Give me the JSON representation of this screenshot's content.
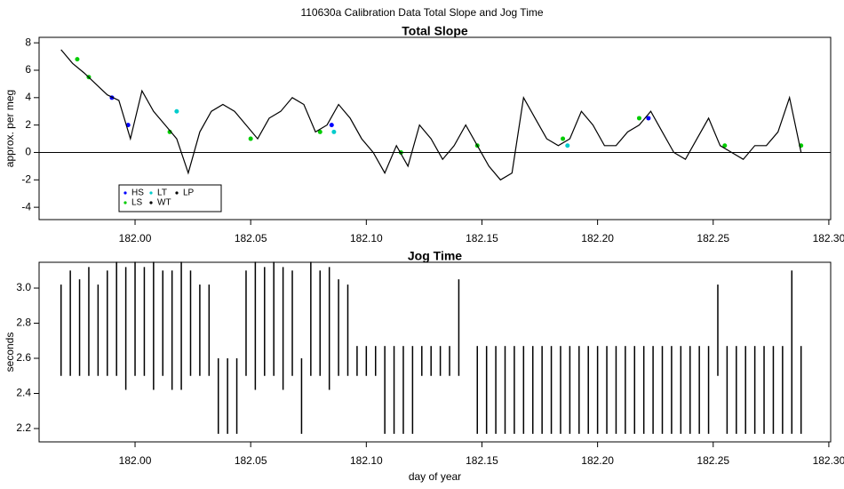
{
  "title": "110630a   Calibration Data Total Slope and Jog Time",
  "chart_data": [
    {
      "type": "line",
      "title": "Total Slope",
      "y_label": "approx. per meg",
      "xlim": [
        181.9585,
        182.3008
      ],
      "ylim": [
        -4.9,
        8.4
      ],
      "xticks": [
        {
          "value": 182,
          "label": "182.00"
        },
        {
          "value": 182.05,
          "label": "182.05"
        },
        {
          "value": 182.1,
          "label": "182.10"
        },
        {
          "value": 182.15,
          "label": "182.15"
        },
        {
          "value": 182.2,
          "label": "182.20"
        },
        {
          "value": 182.25,
          "label": "182.25"
        },
        {
          "value": 182.3,
          "label": "182.30"
        }
      ],
      "yticks": [
        -4,
        -2,
        0,
        2,
        4,
        6,
        8
      ],
      "hline": 0,
      "series": [
        {
          "name": "HS",
          "color": "#0000ff",
          "style": "points",
          "x": [
            181.99,
            181.997,
            182.085,
            182.222
          ],
          "values": [
            4.0,
            2.0,
            2.0,
            2.5
          ]
        },
        {
          "name": "LS",
          "color": "#00cc00",
          "style": "points",
          "x": [
            181.975,
            181.98,
            182.015,
            182.05,
            182.08,
            182.115,
            182.148,
            182.185,
            182.218,
            182.255,
            182.288
          ],
          "values": [
            6.8,
            5.5,
            1.5,
            1.0,
            1.5,
            0,
            0.5,
            1.0,
            2.5,
            0.5,
            0.5
          ]
        },
        {
          "name": "LT",
          "color": "#00cccc",
          "style": "points",
          "x": [
            182.018,
            182.086,
            182.187
          ],
          "values": [
            3.0,
            1.5,
            0.5
          ]
        },
        {
          "name": "WT",
          "color": "#000000",
          "style": "line",
          "x": [
            181.968,
            181.973,
            181.978,
            181.983,
            181.988,
            181.993,
            181.998,
            182.003,
            182.008,
            182.013,
            182.018,
            182.023,
            182.028,
            182.033,
            182.038,
            182.043,
            182.048,
            182.053,
            182.058,
            182.063,
            182.068,
            182.073,
            182.078,
            182.083,
            182.088,
            182.093,
            182.098,
            182.103,
            182.108,
            182.113,
            182.118,
            182.123,
            182.128,
            182.133,
            182.138,
            182.143,
            182.148,
            182.153,
            182.158,
            182.163,
            182.168,
            182.173,
            182.178,
            182.183,
            182.188,
            182.193,
            182.198,
            182.203,
            182.208,
            182.213,
            182.218,
            182.223,
            182.228,
            182.233,
            182.238,
            182.243,
            182.248,
            182.253,
            182.258,
            182.263,
            182.268,
            182.273,
            182.278,
            182.283,
            182.288
          ],
          "values": [
            7.5,
            6.5,
            5.8,
            5.0,
            4.2,
            3.8,
            1.0,
            4.5,
            3.0,
            2.0,
            1.0,
            -1.5,
            1.5,
            3.0,
            3.5,
            3.0,
            2.0,
            1.0,
            2.5,
            3.0,
            4.0,
            3.5,
            1.5,
            2.0,
            3.5,
            2.5,
            1.0,
            0.0,
            -1.5,
            0.5,
            -1.0,
            2.0,
            1.0,
            -0.5,
            0.5,
            2.0,
            0.5,
            -1.0,
            -2.0,
            -1.5,
            4.0,
            2.5,
            1.0,
            0.5,
            1.0,
            3.0,
            2.0,
            0.5,
            0.5,
            1.5,
            2.0,
            3.0,
            1.5,
            0.0,
            -0.5,
            1.0,
            2.5,
            0.5,
            0.0,
            -0.5,
            0.5,
            0.5,
            1.5,
            4.0,
            0.0
          ]
        },
        {
          "name": "LP",
          "color": "#000000",
          "style": "points",
          "x": [],
          "values": []
        }
      ]
    },
    {
      "type": "range",
      "title": "Jog Time",
      "y_label": "seconds",
      "x_label": "day of year",
      "xlim": [
        181.9585,
        182.3008
      ],
      "ylim": [
        2.124,
        3.147
      ],
      "xticks": [
        {
          "value": 182,
          "label": "182.00"
        },
        {
          "value": 182.05,
          "label": "182.05"
        },
        {
          "value": 182.1,
          "label": "182.10"
        },
        {
          "value": 182.15,
          "label": "182.15"
        },
        {
          "value": 182.2,
          "label": "182.20"
        },
        {
          "value": 182.25,
          "label": "182.25"
        },
        {
          "value": 182.3,
          "label": "182.30"
        }
      ],
      "yticks": [
        2.2,
        2.4,
        2.6,
        2.8,
        {
          "value": 3,
          "label": "3.0"
        }
      ],
      "color": "#000000",
      "x": [
        181.968,
        181.972,
        181.976,
        181.98,
        181.984,
        181.988,
        181.992,
        181.996,
        182.0,
        182.004,
        182.008,
        182.012,
        182.016,
        182.02,
        182.024,
        182.028,
        182.032,
        182.036,
        182.04,
        182.044,
        182.048,
        182.052,
        182.056,
        182.06,
        182.064,
        182.068,
        182.072,
        182.076,
        182.08,
        182.084,
        182.088,
        182.092,
        182.096,
        182.1,
        182.104,
        182.108,
        182.112,
        182.116,
        182.12,
        182.124,
        182.128,
        182.132,
        182.136,
        182.14,
        182.144,
        182.148,
        182.152,
        182.156,
        182.16,
        182.164,
        182.168,
        182.172,
        182.176,
        182.18,
        182.184,
        182.188,
        182.192,
        182.196,
        182.2,
        182.204,
        182.208,
        182.212,
        182.216,
        182.22,
        182.224,
        182.228,
        182.232,
        182.236,
        182.24,
        182.244,
        182.248,
        182.252,
        182.256,
        182.26,
        182.264,
        182.268,
        182.272,
        182.276,
        182.28,
        182.284,
        182.288
      ],
      "low": [
        2.5,
        2.5,
        2.5,
        2.5,
        2.5,
        2.5,
        2.5,
        2.42,
        2.5,
        2.5,
        2.42,
        2.5,
        2.42,
        2.42,
        2.5,
        2.5,
        2.5,
        2.17,
        2.17,
        2.17,
        2.5,
        2.42,
        2.5,
        2.5,
        2.42,
        2.5,
        2.17,
        2.5,
        2.5,
        2.42,
        2.5,
        2.5,
        2.5,
        2.5,
        2.5,
        2.17,
        2.17,
        2.17,
        2.17,
        2.5,
        2.5,
        2.5,
        2.5,
        2.5,
        null,
        2.17,
        2.17,
        2.17,
        2.17,
        2.17,
        2.17,
        2.17,
        2.17,
        2.17,
        2.17,
        2.17,
        2.17,
        2.17,
        2.17,
        2.17,
        2.17,
        2.17,
        2.17,
        2.17,
        2.17,
        2.17,
        2.17,
        2.17,
        2.17,
        2.17,
        2.17,
        2.5,
        2.17,
        2.17,
        2.17,
        2.17,
        2.17,
        2.17,
        2.17,
        2.17,
        2.17
      ],
      "high": [
        3.02,
        3.1,
        3.05,
        3.12,
        3.02,
        3.1,
        3.15,
        3.12,
        3.15,
        3.12,
        3.15,
        3.1,
        3.1,
        3.15,
        3.1,
        3.02,
        3.02,
        2.6,
        2.6,
        2.6,
        3.1,
        3.15,
        3.12,
        3.15,
        3.12,
        3.1,
        2.6,
        3.15,
        3.1,
        3.12,
        3.05,
        3.02,
        2.67,
        2.67,
        2.67,
        2.67,
        2.67,
        2.67,
        2.67,
        2.67,
        2.67,
        2.67,
        2.67,
        3.05,
        null,
        2.67,
        2.67,
        2.67,
        2.67,
        2.67,
        2.67,
        2.67,
        2.67,
        2.67,
        2.67,
        2.67,
        2.67,
        2.67,
        2.67,
        2.67,
        2.67,
        2.67,
        2.67,
        2.67,
        2.67,
        2.67,
        2.67,
        2.67,
        2.67,
        2.67,
        2.67,
        3.02,
        2.67,
        2.67,
        2.67,
        2.67,
        2.67,
        2.67,
        2.67,
        3.1,
        2.67
      ]
    }
  ]
}
